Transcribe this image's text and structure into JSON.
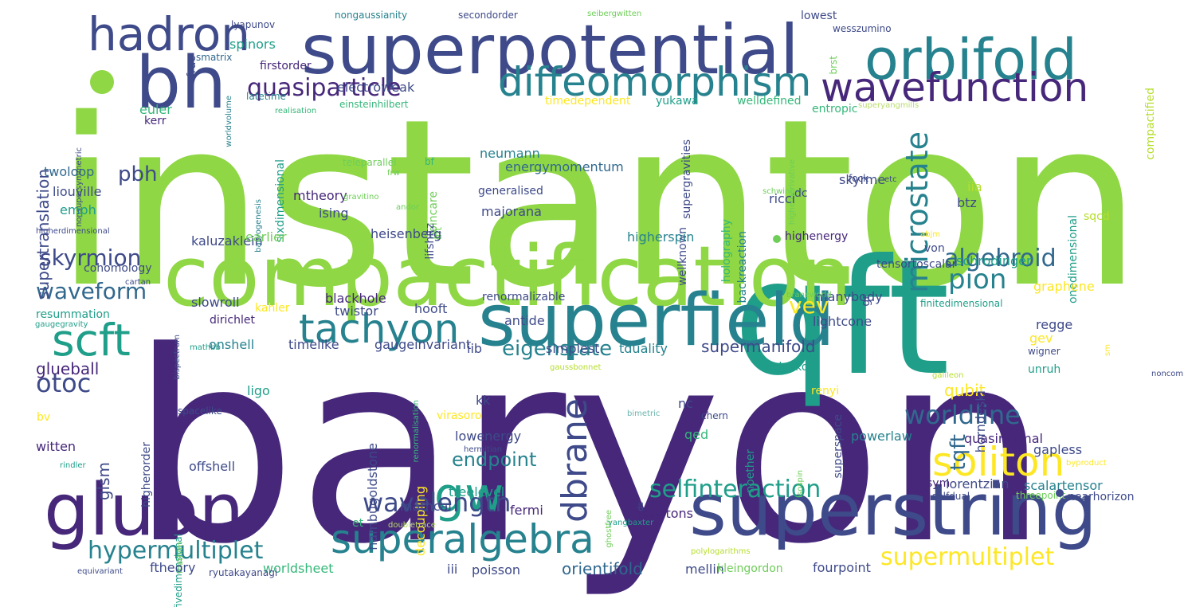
{
  "palette": {
    "purple": "#46277a",
    "indigo": "#3e4a89",
    "blue": "#31688e",
    "teal": "#26828e",
    "green": "#1f9e89",
    "mint": "#35b779",
    "lime": "#6ece58",
    "yellowgreen": "#8fd744",
    "yellow": "#b5de2b",
    "gold": "#fde725",
    "lightteal": "#6ab5ad",
    "lightlime": "#b9dc6a"
  },
  "words": [
    {
      "text": "instanton"
    },
    {
      "text": "baryon"
    },
    {
      "text": "qft"
    },
    {
      "text": "compactification"
    },
    {
      "text": "superpotential"
    },
    {
      "text": "bh"
    },
    {
      "text": "orbifold"
    },
    {
      "text": "superfield"
    },
    {
      "text": "superstring"
    },
    {
      "text": "gluon"
    },
    {
      "text": "hadron"
    },
    {
      "text": "diffeomorphism"
    },
    {
      "text": "wavefunction"
    },
    {
      "text": "tachyon"
    },
    {
      "text": "scft"
    },
    {
      "text": "gw"
    },
    {
      "text": "superalgebra"
    },
    {
      "text": "soliton"
    },
    {
      "text": "quasiparticle"
    },
    {
      "text": "microstate"
    },
    {
      "text": "pion"
    },
    {
      "text": "algebroid"
    },
    {
      "text": "vev"
    },
    {
      "text": "dbrane"
    },
    {
      "text": "selfinteraction"
    },
    {
      "text": "worldline"
    },
    {
      "text": "hypermultiplet"
    },
    {
      "text": "wavelength"
    },
    {
      "text": "supermultiplet"
    },
    {
      "text": "waveform"
    },
    {
      "text": "skyrmion"
    },
    {
      "text": "otoc"
    },
    {
      "text": "eigenstate"
    },
    {
      "text": "endpoint"
    },
    {
      "text": "orientifold"
    },
    {
      "text": "supertranslation"
    },
    {
      "text": "pbh"
    },
    {
      "text": "supermanifold"
    },
    {
      "text": "qubit"
    },
    {
      "text": "tqft"
    },
    {
      "text": "glueball"
    },
    {
      "text": "glsm"
    },
    {
      "text": "lyapunov"
    },
    {
      "text": "nongaussianity"
    },
    {
      "text": "secondorder"
    },
    {
      "text": "seibergwitten"
    },
    {
      "text": "lowest"
    },
    {
      "text": "wesszumino"
    },
    {
      "text": "spinors"
    },
    {
      "text": "firstorder"
    },
    {
      "text": "electroweak"
    },
    {
      "text": "smatrix"
    },
    {
      "text": "frac"
    },
    {
      "text": "brst"
    },
    {
      "text": "latetime"
    },
    {
      "text": "kerr"
    },
    {
      "text": "realisation"
    },
    {
      "text": "einsteinhilbert"
    },
    {
      "text": "timedependent"
    },
    {
      "text": "yukawa"
    },
    {
      "text": "welldefined"
    },
    {
      "text": "entropic"
    },
    {
      "text": "superyangmills"
    },
    {
      "text": "euler"
    },
    {
      "text": "supergravities"
    },
    {
      "text": "sixdimensional"
    },
    {
      "text": "twoloop"
    },
    {
      "text": "neumann"
    },
    {
      "text": "energymomentum"
    },
    {
      "text": "generalised"
    },
    {
      "text": "teleparallel"
    },
    {
      "text": "bf"
    },
    {
      "text": "frw"
    },
    {
      "text": "fock"
    },
    {
      "text": "higherderivative"
    },
    {
      "text": "compactified"
    },
    {
      "text": "poincare"
    },
    {
      "text": "liouville"
    },
    {
      "text": "emph"
    },
    {
      "text": "majorana"
    },
    {
      "text": "lifshitz"
    },
    {
      "text": "mtheory"
    },
    {
      "text": "ising"
    },
    {
      "text": "wellknown"
    },
    {
      "text": "holography"
    },
    {
      "text": "backreaction"
    },
    {
      "text": "ricci"
    },
    {
      "text": "skyrme"
    },
    {
      "text": "schwinger"
    },
    {
      "text": "dc"
    },
    {
      "text": "etc"
    },
    {
      "text": "iia"
    },
    {
      "text": "btz"
    },
    {
      "text": "onedimensional"
    },
    {
      "text": "gravitino"
    },
    {
      "text": "andor"
    },
    {
      "text": "dft"
    },
    {
      "text": "sqcd"
    },
    {
      "text": "higherdimensional"
    },
    {
      "text": "baryogenesis"
    },
    {
      "text": "nonsupersymmetric"
    },
    {
      "text": "worldvolume"
    },
    {
      "text": "kaluzaklein"
    },
    {
      "text": "earlier"
    },
    {
      "text": "heisenberg"
    },
    {
      "text": "higherspin"
    },
    {
      "text": "highenergy"
    },
    {
      "text": "abjm"
    },
    {
      "text": "von"
    },
    {
      "text": "cohomology"
    },
    {
      "text": "cartan"
    },
    {
      "text": "slowroll"
    },
    {
      "text": "kahler"
    },
    {
      "text": "blackhole"
    },
    {
      "text": "twistor"
    },
    {
      "text": "renormalizable"
    },
    {
      "text": "manybody"
    },
    {
      "text": "schrodinger"
    },
    {
      "text": "tensortoscalar"
    },
    {
      "text": "braneworld"
    },
    {
      "text": "finitedimensional"
    },
    {
      "text": "graphene"
    },
    {
      "text": "resummation"
    },
    {
      "text": "gaugegravity"
    },
    {
      "text": "bispectrum"
    },
    {
      "text": "dirichlet"
    },
    {
      "text": "hooft"
    },
    {
      "text": "antide"
    },
    {
      "text": "lightcone"
    },
    {
      "text": "gr"
    },
    {
      "text": "regge"
    },
    {
      "text": "mathbb"
    },
    {
      "text": "onshell"
    },
    {
      "text": "timelike"
    },
    {
      "text": "gaugeinvariant"
    },
    {
      "text": "iib"
    },
    {
      "text": "simplest"
    },
    {
      "text": "tduality"
    },
    {
      "text": "gev"
    },
    {
      "text": "noncompact"
    },
    {
      "text": "wigner"
    },
    {
      "text": "sm"
    },
    {
      "text": "polyakov"
    },
    {
      "text": "gaussbonnet"
    },
    {
      "text": "ligo"
    },
    {
      "text": "renyi"
    },
    {
      "text": "galileon"
    },
    {
      "text": "unruh"
    },
    {
      "text": "bv"
    },
    {
      "text": "spacelike"
    },
    {
      "text": "kk"
    },
    {
      "text": "nc"
    },
    {
      "text": "chern"
    },
    {
      "text": "bimetric"
    },
    {
      "text": "renormalisation"
    },
    {
      "text": "nambugoldstone"
    },
    {
      "text": "superspace"
    },
    {
      "text": "horndeski"
    },
    {
      "text": "higherorder"
    },
    {
      "text": "witten"
    },
    {
      "text": "virasoro"
    },
    {
      "text": "lowenergy"
    },
    {
      "text": "hermitian"
    },
    {
      "text": "decoupling"
    },
    {
      "text": "qed"
    },
    {
      "text": "noether"
    },
    {
      "text": "powerlaw"
    },
    {
      "text": "quasinormal"
    },
    {
      "text": "gapless"
    },
    {
      "text": "rindler"
    },
    {
      "text": "isospin"
    },
    {
      "text": "byproduct"
    },
    {
      "text": "offshell"
    },
    {
      "text": "fivedimensional"
    },
    {
      "text": "treelevel"
    },
    {
      "text": "mathcal"
    },
    {
      "text": "ghostfree"
    },
    {
      "text": "ds"
    },
    {
      "text": "sym"
    },
    {
      "text": "lorentzian"
    },
    {
      "text": "scalartensor"
    },
    {
      "text": "selfdual"
    },
    {
      "text": "threepoint"
    },
    {
      "text": "nearhorizon"
    },
    {
      "text": "fermi"
    },
    {
      "text": "gravitons"
    },
    {
      "text": "et"
    },
    {
      "text": "mathrm"
    },
    {
      "text": "yangbaxter"
    },
    {
      "text": "doubletrace"
    },
    {
      "text": "ftheory"
    },
    {
      "text": "worldsheet"
    },
    {
      "text": "iii"
    },
    {
      "text": "poisson"
    },
    {
      "text": "mellin"
    },
    {
      "text": "kleingordon"
    },
    {
      "text": "fourpoint"
    },
    {
      "text": "polylogarithms"
    },
    {
      "text": "equivariant"
    },
    {
      "text": "ryutakayanagi"
    }
  ]
}
